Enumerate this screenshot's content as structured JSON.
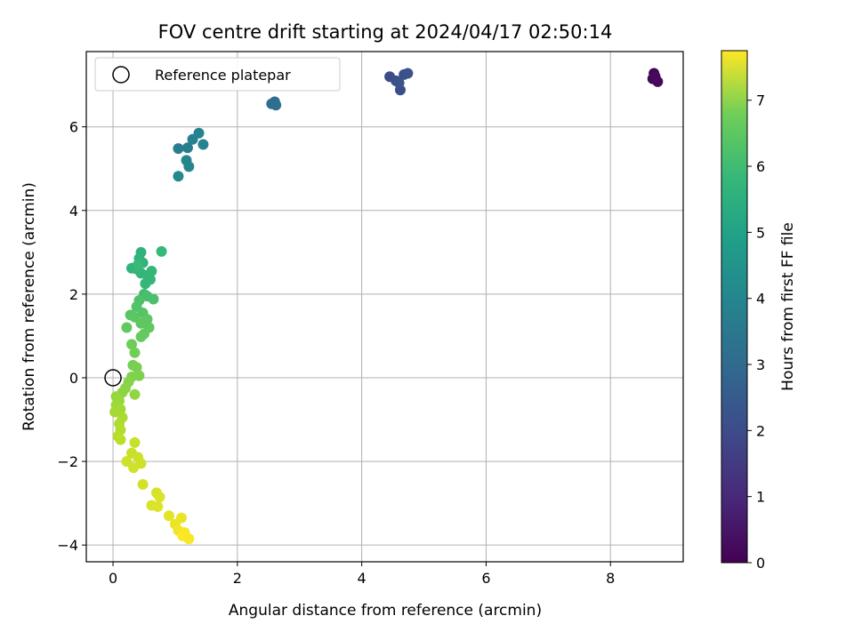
{
  "chart_data": {
    "type": "scatter",
    "title": "FOV centre drift starting at 2024/04/17 02:50:14",
    "xlabel": "Angular distance from reference (arcmin)",
    "ylabel": "Rotation from reference (arcmin)",
    "xlim": [
      -0.43,
      9.17
    ],
    "ylim": [
      -4.4,
      7.8
    ],
    "x_ticks": [
      0,
      2,
      4,
      6,
      8
    ],
    "y_ticks": [
      -4,
      -2,
      0,
      2,
      4,
      6
    ],
    "grid": true,
    "legend": {
      "placement": "top-left",
      "entries": [
        "Reference platepar"
      ]
    },
    "reference_point": {
      "x": 0,
      "y": 0
    },
    "colorbar": {
      "label": "Hours from first FF file",
      "range": [
        0,
        7.75
      ],
      "ticks": [
        0,
        1,
        2,
        3,
        4,
        5,
        6,
        7
      ],
      "colormap": "viridis"
    },
    "points": [
      {
        "x": 8.7,
        "y": 7.28,
        "t": 0.05
      },
      {
        "x": 8.68,
        "y": 7.15,
        "t": 0.1
      },
      {
        "x": 8.76,
        "y": 7.08,
        "t": 0.15
      },
      {
        "x": 8.72,
        "y": 7.2,
        "t": 0.2
      },
      {
        "x": 4.45,
        "y": 7.2,
        "t": 1.75
      },
      {
        "x": 4.55,
        "y": 7.1,
        "t": 1.8
      },
      {
        "x": 4.62,
        "y": 6.88,
        "t": 1.85
      },
      {
        "x": 4.68,
        "y": 7.25,
        "t": 1.9
      },
      {
        "x": 4.74,
        "y": 7.28,
        "t": 1.95
      },
      {
        "x": 4.6,
        "y": 7.05,
        "t": 2.0
      },
      {
        "x": 2.55,
        "y": 6.55,
        "t": 2.7
      },
      {
        "x": 2.6,
        "y": 6.6,
        "t": 2.75
      },
      {
        "x": 2.62,
        "y": 6.52,
        "t": 2.8
      },
      {
        "x": 1.05,
        "y": 5.48,
        "t": 3.3
      },
      {
        "x": 1.2,
        "y": 5.5,
        "t": 3.35
      },
      {
        "x": 1.28,
        "y": 5.7,
        "t": 3.4
      },
      {
        "x": 1.38,
        "y": 5.85,
        "t": 3.45
      },
      {
        "x": 1.45,
        "y": 5.58,
        "t": 3.5
      },
      {
        "x": 1.18,
        "y": 5.2,
        "t": 3.55
      },
      {
        "x": 1.22,
        "y": 5.05,
        "t": 3.6
      },
      {
        "x": 1.05,
        "y": 4.82,
        "t": 3.65
      },
      {
        "x": 0.45,
        "y": 3.0,
        "t": 5.0
      },
      {
        "x": 0.42,
        "y": 2.85,
        "t": 5.02
      },
      {
        "x": 0.48,
        "y": 2.75,
        "t": 5.04
      },
      {
        "x": 0.3,
        "y": 2.62,
        "t": 5.06
      },
      {
        "x": 0.38,
        "y": 2.6,
        "t": 5.08
      },
      {
        "x": 0.45,
        "y": 2.5,
        "t": 5.1
      },
      {
        "x": 0.55,
        "y": 2.45,
        "t": 5.12
      },
      {
        "x": 0.62,
        "y": 2.55,
        "t": 5.14
      },
      {
        "x": 0.6,
        "y": 2.35,
        "t": 5.16
      },
      {
        "x": 0.52,
        "y": 2.25,
        "t": 5.18
      },
      {
        "x": 0.78,
        "y": 3.02,
        "t": 5.2
      },
      {
        "x": 0.4,
        "y": 2.7,
        "t": 5.22
      },
      {
        "x": 0.5,
        "y": 2.0,
        "t": 5.4
      },
      {
        "x": 0.55,
        "y": 1.95,
        "t": 5.45
      },
      {
        "x": 0.65,
        "y": 1.88,
        "t": 5.5
      },
      {
        "x": 0.42,
        "y": 1.85,
        "t": 5.55
      },
      {
        "x": 0.38,
        "y": 1.7,
        "t": 5.6
      },
      {
        "x": 0.48,
        "y": 1.55,
        "t": 5.65
      },
      {
        "x": 0.28,
        "y": 1.5,
        "t": 5.7
      },
      {
        "x": 0.35,
        "y": 1.45,
        "t": 5.72
      },
      {
        "x": 0.55,
        "y": 1.4,
        "t": 5.75
      },
      {
        "x": 0.45,
        "y": 1.3,
        "t": 5.78
      },
      {
        "x": 0.22,
        "y": 1.2,
        "t": 5.8
      },
      {
        "x": 0.58,
        "y": 1.2,
        "t": 5.82
      },
      {
        "x": 0.5,
        "y": 1.05,
        "t": 5.85
      },
      {
        "x": 0.45,
        "y": 0.98,
        "t": 5.88
      },
      {
        "x": 0.3,
        "y": 0.8,
        "t": 6.0
      },
      {
        "x": 0.35,
        "y": 0.6,
        "t": 6.05
      },
      {
        "x": 0.32,
        "y": 0.3,
        "t": 6.1
      },
      {
        "x": 0.38,
        "y": 0.25,
        "t": 6.15
      },
      {
        "x": 0.42,
        "y": 0.05,
        "t": 6.2
      },
      {
        "x": 0.3,
        "y": 0.02,
        "t": 6.25
      },
      {
        "x": 0.25,
        "y": -0.1,
        "t": 6.3
      },
      {
        "x": 0.2,
        "y": -0.25,
        "t": 6.35
      },
      {
        "x": 0.15,
        "y": -0.35,
        "t": 6.4
      },
      {
        "x": 0.35,
        "y": -0.4,
        "t": 6.45
      },
      {
        "x": 0.05,
        "y": -0.45,
        "t": 6.5
      },
      {
        "x": 0.1,
        "y": -0.55,
        "t": 6.55
      },
      {
        "x": 0.05,
        "y": -0.65,
        "t": 6.6
      },
      {
        "x": 0.12,
        "y": -0.75,
        "t": 6.65
      },
      {
        "x": 0.03,
        "y": -0.82,
        "t": 6.7
      },
      {
        "x": 0.15,
        "y": -0.95,
        "t": 6.75
      },
      {
        "x": 0.1,
        "y": -1.1,
        "t": 6.8
      },
      {
        "x": 0.12,
        "y": -1.25,
        "t": 6.85
      },
      {
        "x": 0.08,
        "y": -1.4,
        "t": 6.9
      },
      {
        "x": 0.12,
        "y": -1.48,
        "t": 6.95
      },
      {
        "x": 0.35,
        "y": -1.55,
        "t": 7.1
      },
      {
        "x": 0.3,
        "y": -1.8,
        "t": 7.12
      },
      {
        "x": 0.4,
        "y": -1.9,
        "t": 7.14
      },
      {
        "x": 0.22,
        "y": -2.0,
        "t": 7.16
      },
      {
        "x": 0.45,
        "y": -2.05,
        "t": 7.18
      },
      {
        "x": 0.33,
        "y": -2.15,
        "t": 7.2
      },
      {
        "x": 0.48,
        "y": -2.55,
        "t": 7.25
      },
      {
        "x": 0.7,
        "y": -2.75,
        "t": 7.3
      },
      {
        "x": 0.75,
        "y": -2.85,
        "t": 7.32
      },
      {
        "x": 0.62,
        "y": -3.05,
        "t": 7.34
      },
      {
        "x": 0.72,
        "y": -3.08,
        "t": 7.36
      },
      {
        "x": 0.9,
        "y": -3.3,
        "t": 7.45
      },
      {
        "x": 1.1,
        "y": -3.35,
        "t": 7.5
      },
      {
        "x": 1.0,
        "y": -3.5,
        "t": 7.55
      },
      {
        "x": 1.05,
        "y": -3.65,
        "t": 7.6
      },
      {
        "x": 1.15,
        "y": -3.7,
        "t": 7.65
      },
      {
        "x": 1.22,
        "y": -3.85,
        "t": 7.7
      },
      {
        "x": 1.12,
        "y": -3.78,
        "t": 7.75
      }
    ]
  }
}
